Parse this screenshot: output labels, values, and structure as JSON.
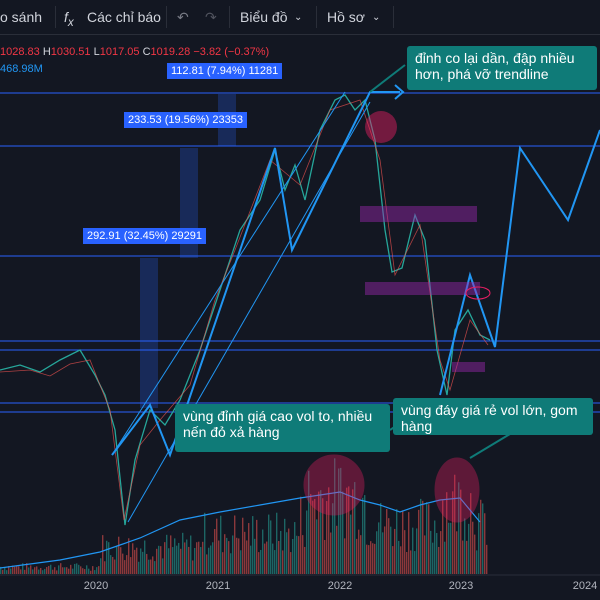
{
  "toolbar": [
    "o sánh",
    "Các chỉ báo",
    "Biểu đồ",
    "Hồ sơ"
  ],
  "legend": {
    "open": "1028.83",
    "high": "1030.51",
    "low": "1017.05",
    "close": "1019.28",
    "change": "−3.82 (−0.37%)",
    "volume": "468.98M"
  },
  "measurements": [
    "112.81 (7.94%) 11281",
    "233.53 (19.56%) 23353",
    "292.91 (32.45%) 29291"
  ],
  "annotations": [
    "đỉnh co lại dần, đập nhiều hơn, phá vỡ trendline",
    "vùng đỉnh giá cao vol to, nhiều nến đỏ xả hàng",
    "vùng đáy giá rẻ vol lớn, gom hàng"
  ],
  "x_axis": [
    "2020",
    "2021",
    "2022",
    "2023",
    "2024"
  ]
}
